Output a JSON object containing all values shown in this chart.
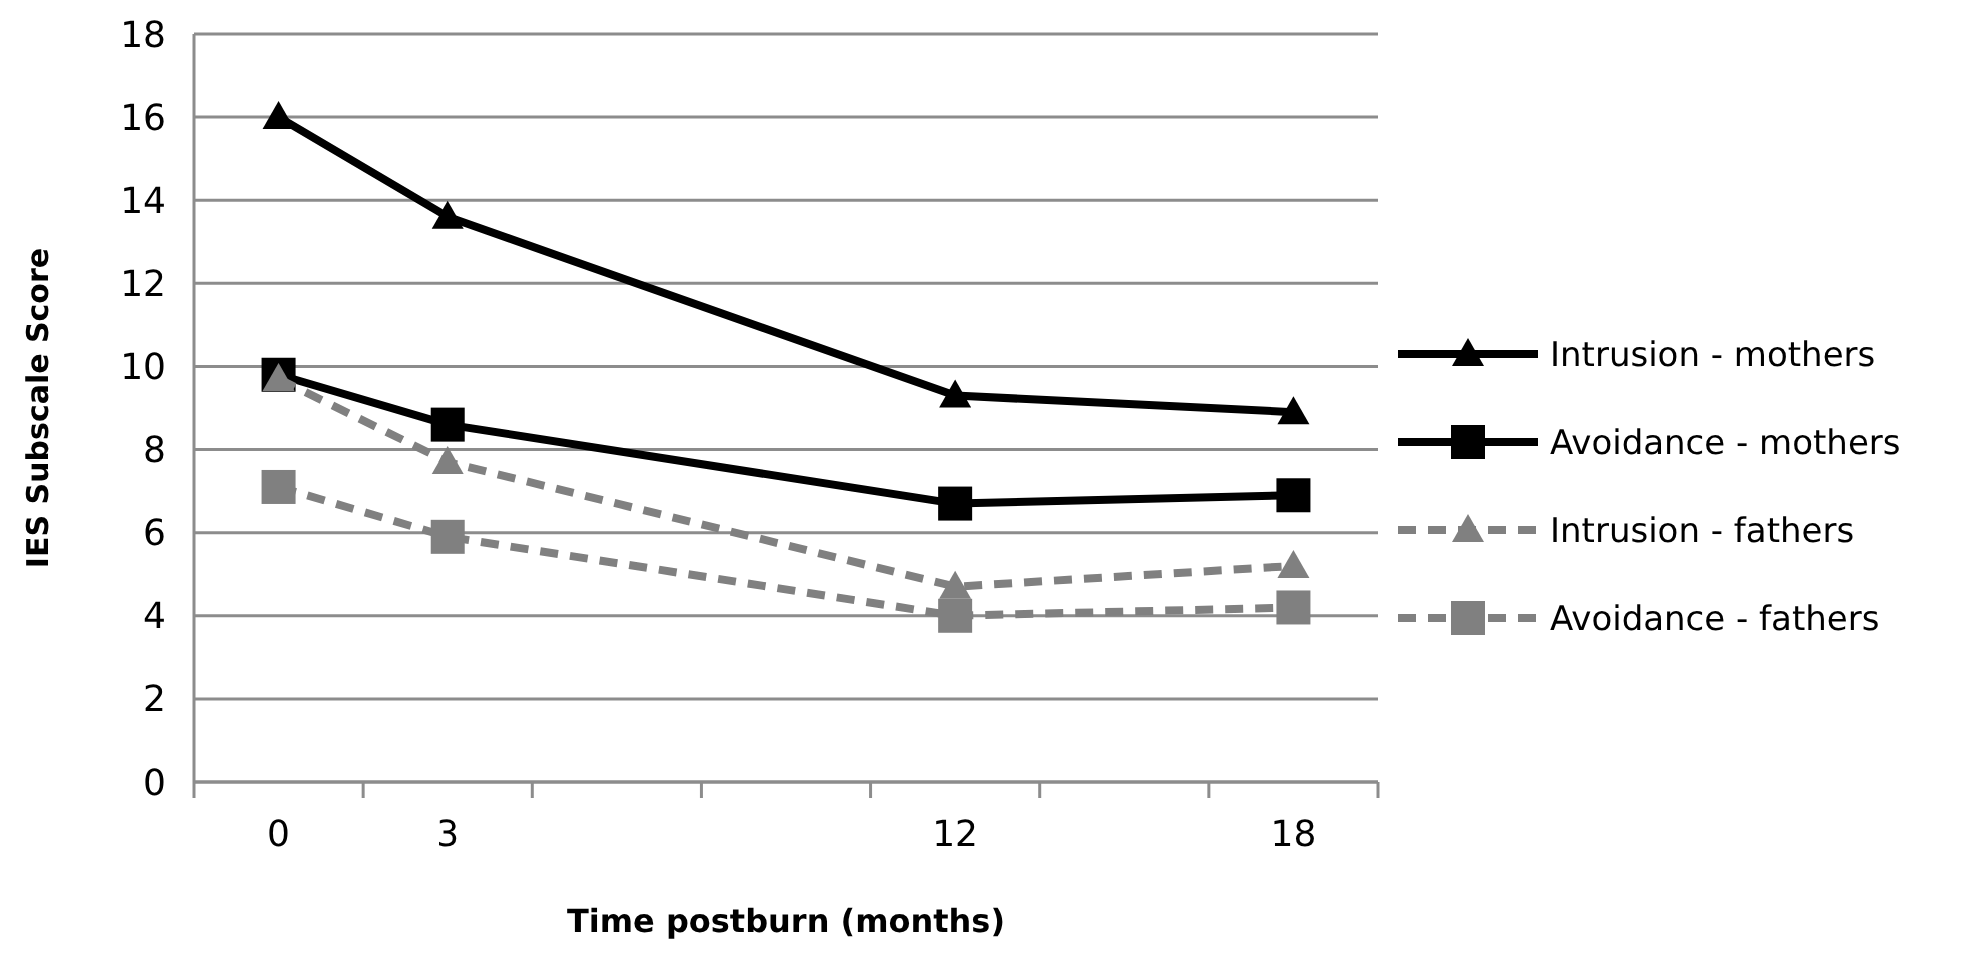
{
  "chart_data": {
    "type": "line",
    "xlabel": "Time postburn (months)",
    "ylabel": "IES Subscale Score",
    "categories": [
      "0",
      "3",
      null,
      null,
      "12",
      null,
      "18"
    ],
    "ylim": [
      0,
      18
    ],
    "yticks": [
      0,
      2,
      4,
      6,
      8,
      10,
      12,
      14,
      16,
      18
    ],
    "grid": "y",
    "legend": "right",
    "series": [
      {
        "name": "Intrusion - mothers",
        "color": "#000000",
        "marker": "triangle",
        "line_style": "solid",
        "values": [
          16.0,
          13.6,
          null,
          null,
          9.3,
          null,
          8.9
        ]
      },
      {
        "name": "Avoidance - mothers",
        "color": "#000000",
        "marker": "square",
        "line_style": "solid",
        "values": [
          9.8,
          8.6,
          null,
          null,
          6.7,
          null,
          6.9
        ]
      },
      {
        "name": "Intrusion - fathers",
        "color": "#808080",
        "marker": "triangle",
        "line_style": "dashed",
        "values": [
          9.7,
          7.7,
          null,
          null,
          4.7,
          null,
          5.2
        ]
      },
      {
        "name": "Avoidance - fathers",
        "color": "#808080",
        "marker": "square",
        "line_style": "dashed",
        "values": [
          7.1,
          5.9,
          null,
          null,
          4.0,
          null,
          4.2
        ]
      }
    ]
  }
}
